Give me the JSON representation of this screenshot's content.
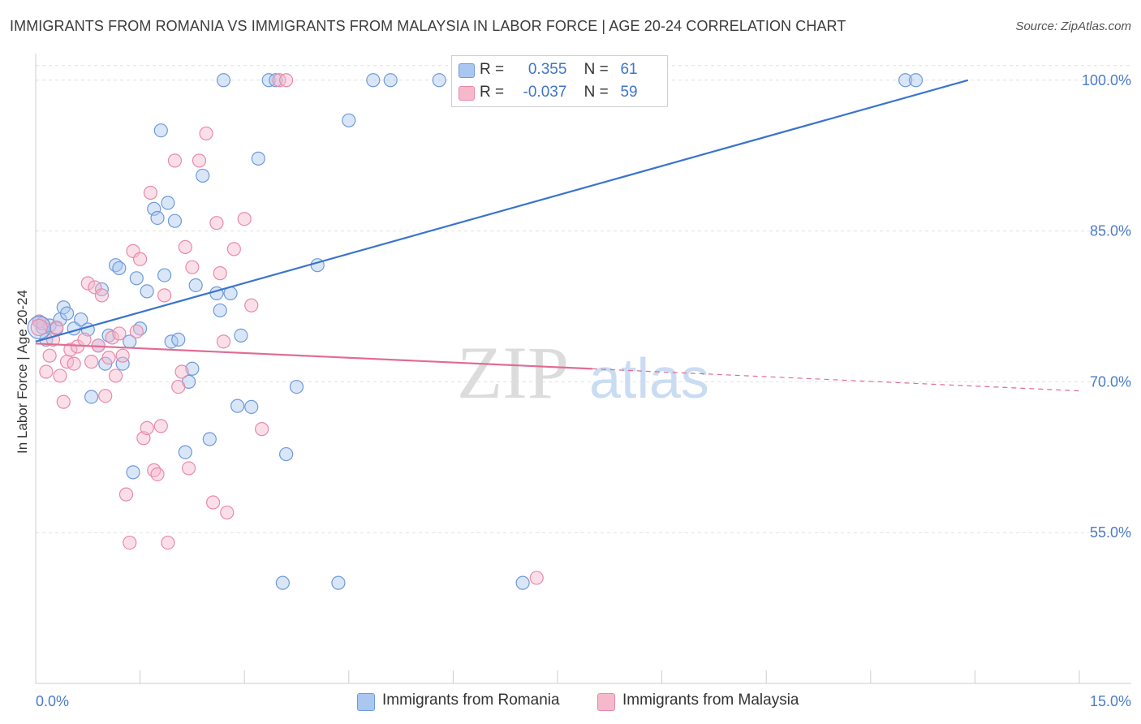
{
  "title": "IMMIGRANTS FROM ROMANIA VS IMMIGRANTS FROM MALAYSIA IN LABOR FORCE | AGE 20-24 CORRELATION CHART",
  "source": "Source: ZipAtlas.com",
  "watermark": {
    "zip": "ZIP",
    "atlas": "atlas"
  },
  "legend": {
    "r_label": "R =",
    "n_label": "N =",
    "rows": [
      {
        "r": "0.355",
        "n": "61"
      },
      {
        "r": "-0.037",
        "n": "59"
      }
    ]
  },
  "colors": {
    "romania_fill": "#a9c7f0",
    "romania_stroke": "#6f9ad8",
    "romania_line": "#3a74cc",
    "malaysia_fill": "#f6b9cc",
    "malaysia_stroke": "#e88aa8",
    "malaysia_line": "#e06c94",
    "grid": "#e1e1e1",
    "tick_text": "#4a7bc8"
  },
  "chart_data": {
    "type": "scatter",
    "title": "IMMIGRANTS FROM ROMANIA VS IMMIGRANTS FROM MALAYSIA IN LABOR FORCE | AGE 20-24 CORRELATION CHART",
    "xlabel": "",
    "ylabel": "In Labor Force | Age 20-24",
    "xlim": [
      0,
      15
    ],
    "ylim": [
      40,
      102
    ],
    "x_tick_labels": [
      {
        "value": 0,
        "label": "0.0%"
      },
      {
        "value": 15,
        "label": "15.0%"
      }
    ],
    "y_tick_labels": [
      {
        "value": 100,
        "label": "100.0%"
      },
      {
        "value": 85,
        "label": "85.0%"
      },
      {
        "value": 70,
        "label": "70.0%"
      },
      {
        "value": 55,
        "label": "55.0%"
      }
    ],
    "grid": true,
    "legend_position": "top-center",
    "series": [
      {
        "name": "Immigrants from Romania",
        "color": "#6f9ad8",
        "trend": {
          "x0": 0,
          "y0": 74.0,
          "x1": 13.4,
          "y1": 100.0,
          "solid_until": 13.4
        },
        "points": [
          [
            0.05,
            76.0
          ],
          [
            0.1,
            75.4
          ],
          [
            0.15,
            74.2
          ],
          [
            0.2,
            75.6
          ],
          [
            0.3,
            75.3
          ],
          [
            0.35,
            76.2
          ],
          [
            0.4,
            77.4
          ],
          [
            0.45,
            76.8
          ],
          [
            0.55,
            75.3
          ],
          [
            0.65,
            76.2
          ],
          [
            0.75,
            75.2
          ],
          [
            0.8,
            68.5
          ],
          [
            0.9,
            73.6
          ],
          [
            0.95,
            79.2
          ],
          [
            1.0,
            71.8
          ],
          [
            1.05,
            74.6
          ],
          [
            1.15,
            81.6
          ],
          [
            1.2,
            81.3
          ],
          [
            1.25,
            71.8
          ],
          [
            1.35,
            74.0
          ],
          [
            1.4,
            61.0
          ],
          [
            1.45,
            80.3
          ],
          [
            1.5,
            75.3
          ],
          [
            1.6,
            79.0
          ],
          [
            1.7,
            87.2
          ],
          [
            1.75,
            86.3
          ],
          [
            1.8,
            95.0
          ],
          [
            1.85,
            80.6
          ],
          [
            1.9,
            87.8
          ],
          [
            1.95,
            74.0
          ],
          [
            2.0,
            86.0
          ],
          [
            2.05,
            74.2
          ],
          [
            2.15,
            63.0
          ],
          [
            2.2,
            70.0
          ],
          [
            2.25,
            71.3
          ],
          [
            2.3,
            79.6
          ],
          [
            2.4,
            90.5
          ],
          [
            2.5,
            64.3
          ],
          [
            2.6,
            78.8
          ],
          [
            2.65,
            77.1
          ],
          [
            2.7,
            100.0
          ],
          [
            2.8,
            78.8
          ],
          [
            2.9,
            67.6
          ],
          [
            2.95,
            74.6
          ],
          [
            3.1,
            67.5
          ],
          [
            3.2,
            92.2
          ],
          [
            3.35,
            100.0
          ],
          [
            3.45,
            100.0
          ],
          [
            3.55,
            50.0
          ],
          [
            3.6,
            62.8
          ],
          [
            3.75,
            69.5
          ],
          [
            4.05,
            81.6
          ],
          [
            4.35,
            50.0
          ],
          [
            4.5,
            96.0
          ],
          [
            4.85,
            100.0
          ],
          [
            5.1,
            100.0
          ],
          [
            5.8,
            100.0
          ],
          [
            7.0,
            50.0
          ],
          [
            12.5,
            100.0
          ],
          [
            12.65,
            100.0
          ]
        ]
      },
      {
        "name": "Immigrants from Malaysia",
        "color": "#e88aa8",
        "trend": {
          "x0": 0,
          "y0": 73.8,
          "x1": 15.0,
          "y1": 69.1,
          "solid_until": 8.0
        },
        "points": [
          [
            0.05,
            76.0
          ],
          [
            0.1,
            75.8
          ],
          [
            0.15,
            71.0
          ],
          [
            0.2,
            72.6
          ],
          [
            0.25,
            74.2
          ],
          [
            0.3,
            75.4
          ],
          [
            0.35,
            70.6
          ],
          [
            0.4,
            68.0
          ],
          [
            0.45,
            72.0
          ],
          [
            0.5,
            73.2
          ],
          [
            0.55,
            71.8
          ],
          [
            0.6,
            73.5
          ],
          [
            0.7,
            74.2
          ],
          [
            0.75,
            79.8
          ],
          [
            0.8,
            72.0
          ],
          [
            0.85,
            79.4
          ],
          [
            0.9,
            73.6
          ],
          [
            0.95,
            78.6
          ],
          [
            1.0,
            68.6
          ],
          [
            1.05,
            72.4
          ],
          [
            1.1,
            74.4
          ],
          [
            1.15,
            70.6
          ],
          [
            1.2,
            74.8
          ],
          [
            1.25,
            72.6
          ],
          [
            1.3,
            58.8
          ],
          [
            1.35,
            54.0
          ],
          [
            1.4,
            83.0
          ],
          [
            1.45,
            75.0
          ],
          [
            1.5,
            82.2
          ],
          [
            1.55,
            64.4
          ],
          [
            1.6,
            65.4
          ],
          [
            1.65,
            88.8
          ],
          [
            1.7,
            61.2
          ],
          [
            1.75,
            60.8
          ],
          [
            1.8,
            65.6
          ],
          [
            1.85,
            78.6
          ],
          [
            1.9,
            54.0
          ],
          [
            2.0,
            92.0
          ],
          [
            2.05,
            69.5
          ],
          [
            2.1,
            71.0
          ],
          [
            2.15,
            83.4
          ],
          [
            2.2,
            61.4
          ],
          [
            2.25,
            81.4
          ],
          [
            2.35,
            92.0
          ],
          [
            2.45,
            94.7
          ],
          [
            2.55,
            58.0
          ],
          [
            2.6,
            85.8
          ],
          [
            2.65,
            80.8
          ],
          [
            2.7,
            74.0
          ],
          [
            2.75,
            57.0
          ],
          [
            2.85,
            83.2
          ],
          [
            3.0,
            86.2
          ],
          [
            3.1,
            77.6
          ],
          [
            3.25,
            65.3
          ],
          [
            3.5,
            100.0
          ],
          [
            3.6,
            100.0
          ],
          [
            7.2,
            50.5
          ]
        ]
      }
    ]
  },
  "bottom_legend": [
    {
      "label": "Immigrants from Romania"
    },
    {
      "label": "Immigrants from Malaysia"
    }
  ]
}
